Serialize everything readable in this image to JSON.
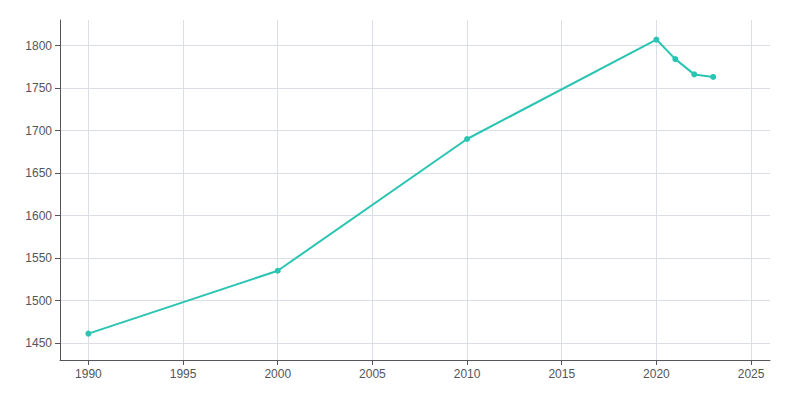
{
  "chart_data": {
    "type": "line",
    "x": [
      1990,
      2000,
      2010,
      2020,
      2021,
      2022,
      2023
    ],
    "values": [
      1461,
      1535,
      1690,
      1807,
      1784,
      1766,
      1763
    ],
    "color": "#2AC4B3",
    "marker": "circle",
    "xlim": [
      1988.5,
      2026
    ],
    "ylim": [
      1430,
      1830
    ],
    "xticks": [
      1990,
      1995,
      2000,
      2005,
      2010,
      2015,
      2020,
      2025
    ],
    "yticks": [
      1450,
      1500,
      1550,
      1600,
      1650,
      1700,
      1750,
      1800
    ],
    "grid": true
  }
}
